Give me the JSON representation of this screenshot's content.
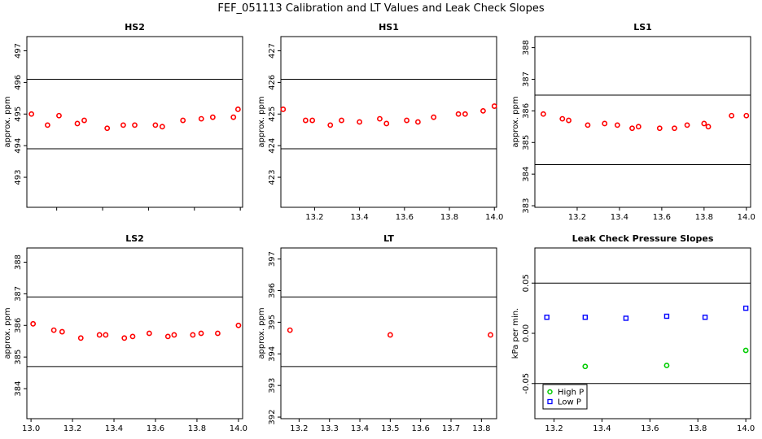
{
  "figure_title": "FEF_051113  Calibration and LT Values and Leak Check Slopes",
  "chart_data": [
    {
      "id": "hs2",
      "type": "scatter",
      "title": "HS2",
      "ylabel": "approx. ppm",
      "xlim": [
        13.07,
        14.01
      ],
      "ylim": [
        492.05,
        497.45
      ],
      "xticks": [
        13.2,
        13.4,
        13.6,
        13.8,
        14.0
      ],
      "xtick_labels": [
        "13.2",
        "13.4",
        "13.6",
        "13.8",
        "14.0"
      ],
      "show_xticks": false,
      "yticks": [
        493,
        494,
        495,
        496,
        497
      ],
      "ytick_labels": [
        "493",
        "494",
        "495",
        "496",
        "497"
      ],
      "hlines": [
        493.9,
        496.1
      ],
      "series": [
        {
          "name": "HS2",
          "color": "#ff0000",
          "marker": "circle",
          "x": [
            13.09,
            13.16,
            13.21,
            13.29,
            13.32,
            13.42,
            13.49,
            13.54,
            13.63,
            13.66,
            13.75,
            13.83,
            13.88,
            13.97,
            13.99
          ],
          "y": [
            495.0,
            494.65,
            494.95,
            494.7,
            494.8,
            494.55,
            494.65,
            494.65,
            494.65,
            494.6,
            494.8,
            494.85,
            494.9,
            494.9,
            495.15
          ]
        }
      ]
    },
    {
      "id": "hs1",
      "type": "scatter",
      "title": "HS1",
      "ylabel": "approx. ppm",
      "xlim": [
        13.05,
        14.01
      ],
      "ylim": [
        422.05,
        427.45
      ],
      "xticks": [
        13.2,
        13.4,
        13.6,
        13.8,
        14.0
      ],
      "xtick_labels": [
        "13.2",
        "13.4",
        "13.6",
        "13.8",
        "14.0"
      ],
      "show_xticks": true,
      "yticks": [
        423,
        424,
        425,
        426,
        427
      ],
      "ytick_labels": [
        "423",
        "424",
        "425",
        "426",
        "427"
      ],
      "hlines": [
        423.9,
        426.1
      ],
      "series": [
        {
          "name": "HS1",
          "color": "#ff0000",
          "marker": "circle",
          "x": [
            13.06,
            13.16,
            13.19,
            13.27,
            13.32,
            13.4,
            13.49,
            13.52,
            13.61,
            13.66,
            13.73,
            13.84,
            13.87,
            13.95,
            14.0
          ],
          "y": [
            425.15,
            424.8,
            424.8,
            424.65,
            424.8,
            424.75,
            424.85,
            424.7,
            424.8,
            424.75,
            424.9,
            425.0,
            425.0,
            425.1,
            425.25
          ]
        }
      ]
    },
    {
      "id": "ls1",
      "type": "scatter",
      "title": "LS1",
      "ylabel": "approx. ppm",
      "xlim": [
        13.0,
        14.02
      ],
      "ylim": [
        382.95,
        388.35
      ],
      "xticks": [
        13.2,
        13.4,
        13.6,
        13.8,
        14.0
      ],
      "xtick_labels": [
        "13.2",
        "13.4",
        "13.6",
        "13.8",
        "14.0"
      ],
      "show_xticks": true,
      "yticks": [
        383,
        384,
        385,
        386,
        387,
        388
      ],
      "ytick_labels": [
        "383",
        "384",
        "385",
        "386",
        "387",
        "388"
      ],
      "hlines": [
        384.3,
        386.5
      ],
      "series": [
        {
          "name": "LS1",
          "color": "#ff0000",
          "marker": "circle",
          "x": [
            13.04,
            13.13,
            13.16,
            13.25,
            13.33,
            13.39,
            13.46,
            13.49,
            13.59,
            13.66,
            13.72,
            13.8,
            13.82,
            13.93,
            14.0
          ],
          "y": [
            385.9,
            385.75,
            385.7,
            385.55,
            385.6,
            385.55,
            385.45,
            385.5,
            385.45,
            385.45,
            385.55,
            385.6,
            385.5,
            385.85,
            385.85
          ]
        }
      ]
    },
    {
      "id": "ls2",
      "type": "scatter",
      "title": "LS2",
      "ylabel": "approx. ppm",
      "xlim": [
        12.98,
        14.02
      ],
      "ylim": [
        383.05,
        388.45
      ],
      "xticks": [
        13.0,
        13.2,
        13.4,
        13.6,
        13.8,
        14.0
      ],
      "xtick_labels": [
        "13.0",
        "13.2",
        "13.4",
        "13.6",
        "13.8",
        "14.0"
      ],
      "show_xticks": true,
      "yticks": [
        384,
        385,
        386,
        387,
        388
      ],
      "ytick_labels": [
        "384",
        "385",
        "386",
        "387",
        "388"
      ],
      "hlines": [
        384.7,
        386.9
      ],
      "series": [
        {
          "name": "LS2",
          "color": "#ff0000",
          "marker": "circle",
          "x": [
            13.01,
            13.11,
            13.15,
            13.24,
            13.33,
            13.36,
            13.45,
            13.49,
            13.57,
            13.66,
            13.69,
            13.78,
            13.82,
            13.9,
            14.0
          ],
          "y": [
            386.05,
            385.85,
            385.8,
            385.6,
            385.7,
            385.7,
            385.6,
            385.65,
            385.75,
            385.65,
            385.7,
            385.7,
            385.75,
            385.75,
            386.0
          ]
        }
      ]
    },
    {
      "id": "lt",
      "type": "scatter",
      "title": "LT",
      "ylabel": "approx. ppm",
      "xlim": [
        13.14,
        13.85
      ],
      "ylim": [
        391.95,
        397.35
      ],
      "xticks": [
        13.2,
        13.3,
        13.4,
        13.5,
        13.6,
        13.7,
        13.8
      ],
      "xtick_labels": [
        "13.2",
        "13.3",
        "13.4",
        "13.5",
        "13.6",
        "13.7",
        "13.8"
      ],
      "show_xticks": true,
      "yticks": [
        392,
        393,
        394,
        395,
        396,
        397
      ],
      "ytick_labels": [
        "392",
        "393",
        "394",
        "395",
        "396",
        "397"
      ],
      "hlines": [
        393.6,
        395.8
      ],
      "series": [
        {
          "name": "LT",
          "color": "#ff0000",
          "marker": "circle",
          "x": [
            13.17,
            13.5,
            13.83
          ],
          "y": [
            394.75,
            394.6,
            394.6
          ]
        }
      ]
    },
    {
      "id": "leak",
      "type": "scatter",
      "title": "Leak Check Pressure Slopes",
      "ylabel": "kPa per min.",
      "xlim": [
        13.12,
        14.02
      ],
      "ylim": [
        -0.085,
        0.085
      ],
      "xticks": [
        13.2,
        13.4,
        13.6,
        13.8,
        14.0
      ],
      "xtick_labels": [
        "13.2",
        "13.4",
        "13.6",
        "13.8",
        "14.0"
      ],
      "show_xticks": true,
      "yticks": [
        -0.05,
        0.0,
        0.05
      ],
      "ytick_labels": [
        "-0.05",
        "0.00",
        "0.05"
      ],
      "hlines": [
        -0.05,
        0.05
      ],
      "legend": {
        "position": "bottom-left",
        "entries": [
          "High P",
          "Low P"
        ]
      },
      "series": [
        {
          "name": "High P",
          "color": "#00cc00",
          "marker": "circle",
          "x": [
            13.33,
            13.67,
            14.0
          ],
          "y": [
            -0.033,
            -0.032,
            -0.017
          ]
        },
        {
          "name": "Low P",
          "color": "#0000ff",
          "marker": "square",
          "x": [
            13.17,
            13.33,
            13.5,
            13.67,
            13.83,
            14.0
          ],
          "y": [
            0.016,
            0.016,
            0.015,
            0.017,
            0.016,
            0.025
          ]
        }
      ]
    }
  ]
}
